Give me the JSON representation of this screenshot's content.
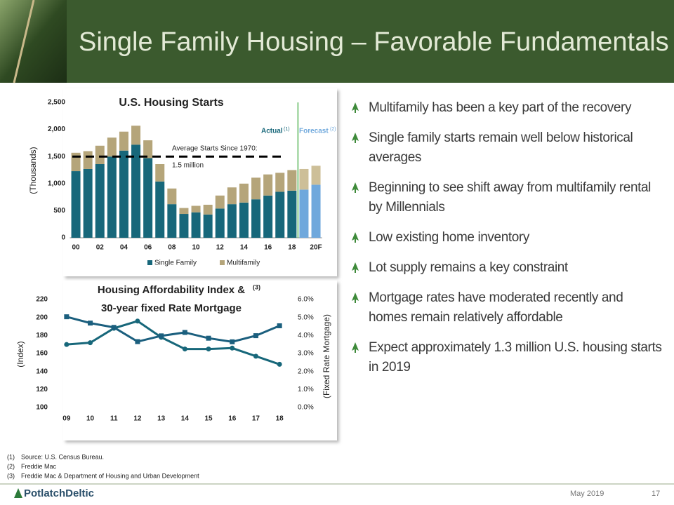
{
  "header": {
    "title": "Single Family Housing – Favorable Fundamentals"
  },
  "chart_data": [
    {
      "type": "bar",
      "stacked": true,
      "title": "U.S. Housing Starts",
      "y_label": "(Thousands)",
      "categories": [
        "00",
        null,
        "02",
        null,
        "04",
        null,
        "06",
        null,
        "08",
        null,
        "10",
        null,
        "12",
        null,
        "14",
        null,
        "16",
        null,
        "18",
        null,
        "20F"
      ],
      "series": [
        {
          "name": "Single Family",
          "color": "#17677a",
          "colors": [
            "#17677a",
            "#17677a",
            "#17677a",
            "#17677a",
            "#17677a",
            "#17677a",
            "#17677a",
            "#17677a",
            "#17677a",
            "#17677a",
            "#17677a",
            "#17677a",
            "#17677a",
            "#17677a",
            "#17677a",
            "#17677a",
            "#17677a",
            "#17677a",
            "#17677a",
            "#6fa8dc",
            "#6fa8dc"
          ],
          "values": [
            1230,
            1270,
            1360,
            1500,
            1610,
            1720,
            1470,
            1040,
            620,
            440,
            470,
            430,
            540,
            620,
            650,
            710,
            780,
            850,
            870,
            890,
            980
          ]
        },
        {
          "name": "Multifamily",
          "color": "#b5a57a",
          "colors": [
            "#b5a57a",
            "#b5a57a",
            "#b5a57a",
            "#b5a57a",
            "#b5a57a",
            "#b5a57a",
            "#b5a57a",
            "#b5a57a",
            "#b5a57a",
            "#b5a57a",
            "#b5a57a",
            "#b5a57a",
            "#b5a57a",
            "#b5a57a",
            "#b5a57a",
            "#b5a57a",
            "#b5a57a",
            "#b5a57a",
            "#b5a57a",
            "#cdbf98",
            "#cdbf98"
          ],
          "values": [
            340,
            330,
            340,
            350,
            350,
            350,
            330,
            320,
            290,
            110,
            120,
            180,
            240,
            310,
            350,
            400,
            390,
            350,
            380,
            380,
            350
          ]
        }
      ],
      "ylim": [
        0,
        2500
      ],
      "yticks": [
        0,
        500,
        {
          "value": 1000,
          "label": "1,000"
        },
        {
          "value": 1500,
          "label": "1,500"
        },
        {
          "value": 2000,
          "label": "2,000"
        },
        {
          "value": 2500,
          "label": "2,500"
        }
      ],
      "reference_line": {
        "value": 1500,
        "label": [
          "Average Starts Since 1970:",
          "1.5 million"
        ]
      },
      "annotations": [
        {
          "text": "Actual",
          "note": "(1)",
          "color": "#17677a"
        },
        {
          "text": "Forecast",
          "note": "(2)",
          "color": "#6fa8dc"
        }
      ],
      "legend": "bottom"
    },
    {
      "type": "line",
      "title": [
        "Housing Affordability Index &",
        "30-year fixed Rate Mortgage"
      ],
      "title_note": "(3)",
      "y_label": "(Index)",
      "y2_label": "(Fixed Rate Mortgage)",
      "categories": [
        "09",
        "10",
        "11",
        "12",
        "13",
        "14",
        "15",
        "16",
        "17",
        "18"
      ],
      "series": [
        {
          "color": "#17677a",
          "marker": "circle",
          "values": [
            170,
            172,
            188,
            196,
            178,
            165,
            165,
            166,
            157,
            148
          ]
        },
        {
          "color": "#1b5f7e",
          "marker": "square",
          "axis": "y2",
          "values": [
            5.04,
            4.69,
            4.45,
            3.66,
            3.98,
            4.17,
            3.85,
            3.65,
            3.99,
            4.54
          ]
        }
      ],
      "ylim": [
        100,
        220
      ],
      "yticks": [
        100,
        120,
        140,
        160,
        180,
        200,
        220
      ],
      "y2lim": [
        0,
        6
      ],
      "y2ticks": [
        {
          "value": 0,
          "label": "0.0%"
        },
        {
          "value": 1,
          "label": "1.0%"
        },
        {
          "value": 2,
          "label": "2.0%"
        },
        {
          "value": 3,
          "label": "3.0%"
        },
        {
          "value": 4,
          "label": "4.0%"
        },
        {
          "value": 5,
          "label": "5.0%"
        },
        {
          "value": 6,
          "label": "6.0%"
        }
      ]
    }
  ],
  "bullets": [
    "Multifamily has been a key part of the recovery",
    "Single family starts remain well below historical averages",
    "Beginning to see shift away from multifamily rental by Millennials",
    "Low existing home inventory",
    "Lot supply remains a key constraint",
    "Mortgage rates have moderated recently and homes remain relatively affordable",
    "Expect approximately 1.3 million U.S. housing starts in 2019"
  ],
  "footnotes": [
    {
      "marker": "(1)",
      "text": "Source:  U.S. Census Bureau."
    },
    {
      "marker": "(2)",
      "text": "Freddie  Mac"
    },
    {
      "marker": "(3)",
      "text": "Freddie  Mac & Department  of Housing and Urban Development"
    }
  ],
  "footer": {
    "logo": "PotlatchDeltic",
    "date": "May 2019",
    "page": "17"
  }
}
